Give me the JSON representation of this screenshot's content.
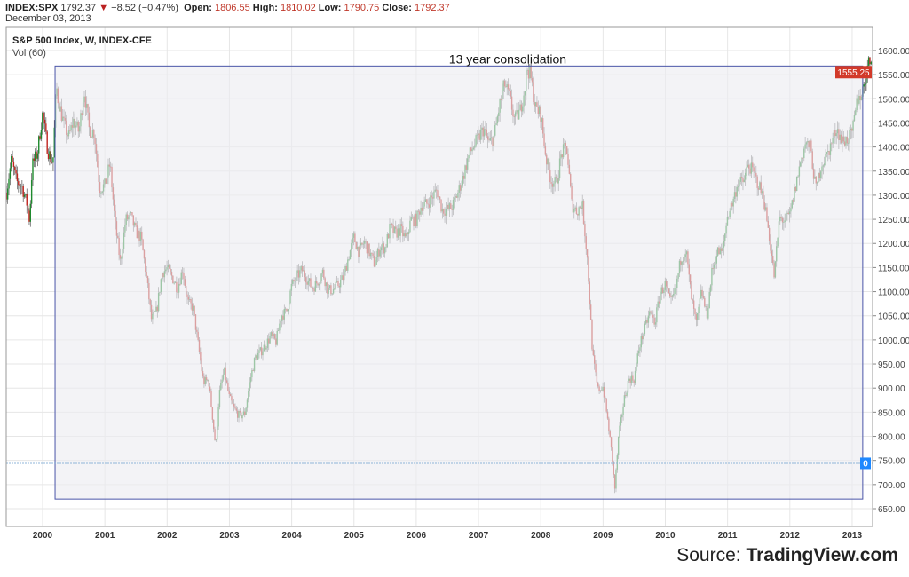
{
  "header": {
    "symbol": "INDEX:SPX",
    "last": "1792.37",
    "change_icon": "down-triangle-icon",
    "change": "−8.52 (−0.47%)",
    "open_label": "Open:",
    "open": "1806.55",
    "high_label": "High:",
    "high": "1810.02",
    "low_label": "Low:",
    "low": "1790.75",
    "close_label": "Close:",
    "close": "1792.37",
    "date": "December 03, 2013"
  },
  "source": {
    "prefix": "Source:",
    "name": "TradingView.com"
  },
  "chart_data": {
    "type": "candlestick",
    "title": "S&P 500 Index, W, INDEX-CFE",
    "subtitle": "Vol (60)",
    "annotation": "13 year consolidation",
    "consolidation_box": {
      "start": 2000.2,
      "end": 2013.17,
      "high": 1568,
      "low": 670
    },
    "last_price_label": "1555.25",
    "volume_label": "0",
    "volume_line_price": 744,
    "ylim": [
      630,
      1610
    ],
    "xlim": [
      1999.42,
      2013.32
    ],
    "y_ticks": [
      "650.00",
      "700.00",
      "750.00",
      "800.00",
      "850.00",
      "900.00",
      "950.00",
      "1000.00",
      "1050.00",
      "1100.00",
      "1150.00",
      "1200.00",
      "1250.00",
      "1300.00",
      "1350.00",
      "1400.00",
      "1450.00",
      "1500.00",
      "1550.00",
      "1600.00"
    ],
    "x_ticks": [
      "2000",
      "2001",
      "2002",
      "2003",
      "2004",
      "2005",
      "2006",
      "2007",
      "2008",
      "2009",
      "2010",
      "2011",
      "2012",
      "2013"
    ],
    "colors": {
      "up": "#1f8a2e",
      "down": "#c0241f",
      "box": "#4a55a8",
      "price_label": "#d23a2a",
      "vol_label": "#1e88ff"
    },
    "monthly_close_start": "1999-05",
    "monthly_close": [
      1302,
      1373,
      1328,
      1320,
      1282,
      1362,
      1388,
      1469,
      1394,
      1366,
      1498,
      1452,
      1420,
      1455,
      1431,
      1518,
      1436,
      1429,
      1315,
      1320,
      1366,
      1240,
      1160,
      1249,
      1256,
      1224,
      1211,
      1134,
      1041,
      1060,
      1139,
      1148,
      1130,
      1107,
      1147,
      1077,
      1067,
      990,
      912,
      916,
      815,
      885,
      936,
      880,
      856,
      841,
      848,
      917,
      964,
      975,
      990,
      1008,
      996,
      1051,
      1058,
      1112,
      1131,
      1145,
      1126,
      1107,
      1121,
      1141,
      1102,
      1104,
      1115,
      1130,
      1174,
      1212,
      1181,
      1204,
      1181,
      1157,
      1192,
      1191,
      1234,
      1220,
      1229,
      1207,
      1249,
      1248,
      1280,
      1281,
      1295,
      1311,
      1270,
      1270,
      1277,
      1304,
      1336,
      1378,
      1401,
      1418,
      1438,
      1407,
      1421,
      1482,
      1531,
      1503,
      1455,
      1474,
      1527,
      1549,
      1481,
      1468,
      1379,
      1331,
      1323,
      1386,
      1400,
      1280,
      1267,
      1283,
      1166,
      969,
      896,
      903,
      826,
      735,
      798,
      873,
      919,
      919,
      987,
      1021,
      1057,
      1036,
      1096,
      1115,
      1074,
      1104,
      1169,
      1187,
      1089,
      1031,
      1102,
      1049,
      1141,
      1183,
      1181,
      1258,
      1286,
      1327,
      1326,
      1364,
      1345,
      1321,
      1292,
      1219,
      1131,
      1253,
      1247,
      1258,
      1312,
      1366,
      1408,
      1398,
      1310,
      1362,
      1379,
      1407,
      1441,
      1412,
      1416,
      1426,
      1498,
      1515,
      1569,
      1590
    ],
    "extremes": [
      [
        1999.79,
        1247
      ],
      [
        2000.22,
        1527
      ],
      [
        2002.78,
        776
      ],
      [
        2007.78,
        1565
      ],
      [
        2009.18,
        676
      ]
    ]
  }
}
